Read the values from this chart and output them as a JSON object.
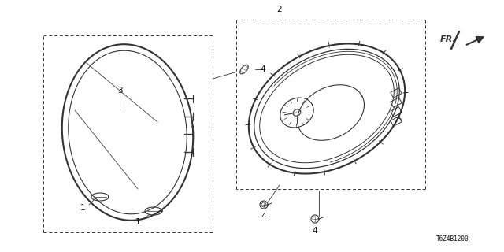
{
  "bg_color": "#ffffff",
  "line_color": "#333333",
  "label_color": "#111111",
  "fig_w": 6.4,
  "fig_h": 3.2,
  "dpi": 100,
  "fr_text": "FR.",
  "diagram_id": "T6Z4B1200",
  "font_size_label": 7.5,
  "font_size_id": 5.5
}
